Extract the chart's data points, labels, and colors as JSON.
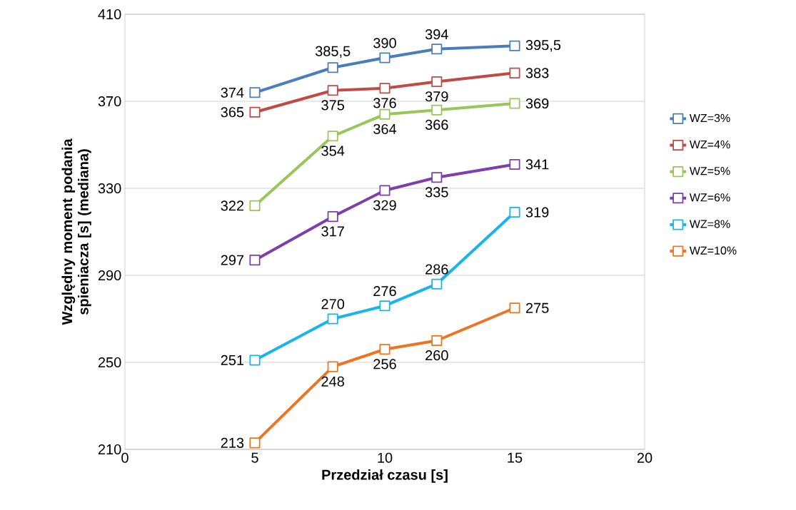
{
  "chart_data": {
    "type": "line",
    "xlabel": "Przedział czasu [s]",
    "ylabel": "Względny moment podania spieniacza [s] (mediana)",
    "x": [
      5,
      8,
      10,
      12,
      15
    ],
    "series": [
      {
        "name": "WZ=3%",
        "color": "#4a7ebb",
        "values": [
          374,
          385.5,
          390,
          394,
          395.5
        ],
        "value_labels": [
          "374",
          "385,5",
          "390",
          "394",
          "395,5"
        ]
      },
      {
        "name": "WZ=4%",
        "color": "#be4b48",
        "values": [
          365,
          375,
          376,
          379,
          383
        ],
        "value_labels": [
          "365",
          "375",
          "376",
          "379",
          "383"
        ]
      },
      {
        "name": "WZ=5%",
        "color": "#98c65a",
        "values": [
          322,
          354,
          364,
          366,
          369
        ],
        "value_labels": [
          "322",
          "354",
          "364",
          "366",
          "369"
        ]
      },
      {
        "name": "WZ=6%",
        "color": "#7d3fa8",
        "values": [
          297,
          317,
          329,
          335,
          341
        ],
        "value_labels": [
          "297",
          "317",
          "329",
          "335",
          "341"
        ]
      },
      {
        "name": "WZ=8%",
        "color": "#19b4ea",
        "values": [
          251,
          270,
          276,
          286,
          319
        ],
        "value_labels": [
          "251",
          "270",
          "276",
          "286",
          "319"
        ]
      },
      {
        "name": "WZ=10%",
        "color": "#ee7422",
        "values": [
          213,
          248,
          256,
          260,
          275
        ],
        "value_labels": [
          "213",
          "248",
          "256",
          "260",
          "275"
        ]
      }
    ],
    "xlim": [
      0,
      20
    ],
    "xticks": [
      0,
      5,
      10,
      15,
      20
    ],
    "ylim": [
      210,
      410
    ],
    "yticks": [
      210,
      250,
      290,
      330,
      370,
      410
    ],
    "grid": "y",
    "legend": "right",
    "marker": "square",
    "line_style": "solid"
  }
}
